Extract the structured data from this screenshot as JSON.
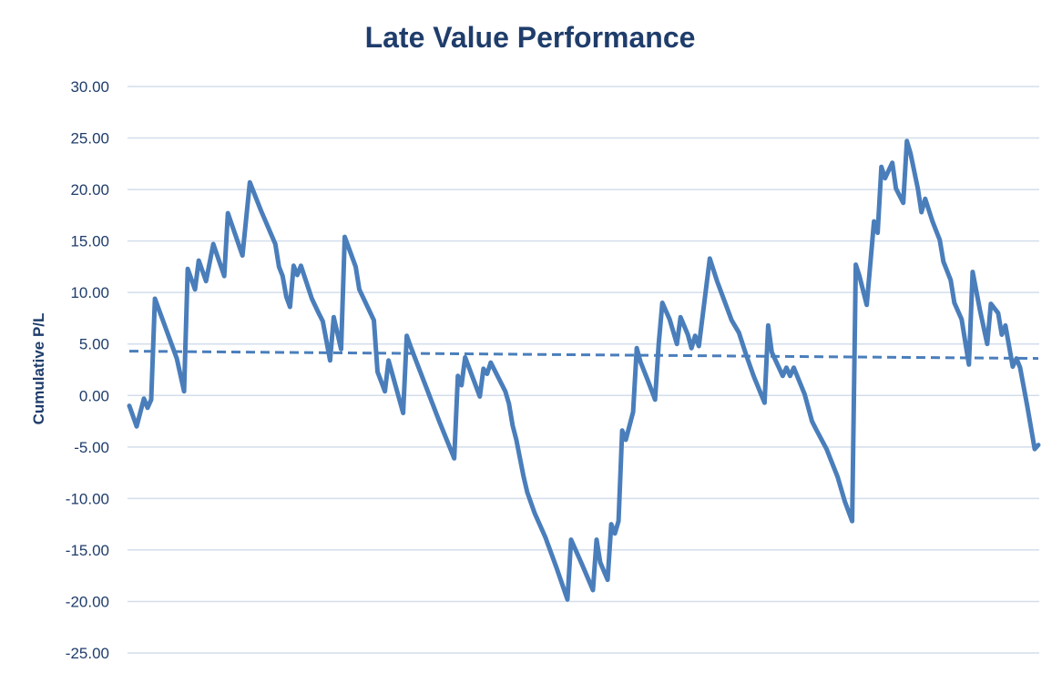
{
  "chart_data": {
    "type": "line",
    "title": "Late Value Performance",
    "xlabel": "",
    "ylabel": "Cumulative P/L",
    "ylim": [
      -25,
      30
    ],
    "yticks": [
      "30.00",
      "25.00",
      "20.00",
      "15.00",
      "10.00",
      "5.00",
      "0.00",
      "-5.00",
      "-10.00",
      "-15.00",
      "-20.00",
      "-25.00"
    ],
    "ytick_values": [
      30,
      25,
      20,
      15,
      10,
      5,
      0,
      -5,
      -10,
      -15,
      -20,
      -25
    ],
    "grid": true,
    "legend": "none",
    "colors": {
      "series": "#4a7ebb",
      "grid": "#d3deeb",
      "text": "#1f3d6b"
    },
    "series": [
      {
        "style": "solid",
        "points": [
          [
            0,
            -1.0
          ],
          [
            2,
            -3.0
          ],
          [
            4,
            -0.3
          ],
          [
            5,
            -1.2
          ],
          [
            6,
            -0.4
          ],
          [
            7,
            9.4
          ],
          [
            10,
            6.5
          ],
          [
            13,
            3.6
          ],
          [
            15,
            0.4
          ],
          [
            16,
            12.3
          ],
          [
            18,
            10.3
          ],
          [
            19,
            13.1
          ],
          [
            21,
            11.1
          ],
          [
            23,
            14.7
          ],
          [
            26,
            11.6
          ],
          [
            27,
            17.7
          ],
          [
            31,
            13.6
          ],
          [
            33,
            20.7
          ],
          [
            36,
            18.0
          ],
          [
            40,
            14.7
          ],
          [
            41,
            12.5
          ],
          [
            42,
            11.6
          ],
          [
            43,
            9.6
          ],
          [
            44,
            8.6
          ],
          [
            45,
            12.6
          ],
          [
            46,
            11.7
          ],
          [
            47,
            12.6
          ],
          [
            50,
            9.4
          ],
          [
            52,
            7.9
          ],
          [
            53,
            7.2
          ],
          [
            55,
            3.4
          ],
          [
            56,
            7.6
          ],
          [
            58,
            4.5
          ],
          [
            59,
            15.4
          ],
          [
            62,
            12.5
          ],
          [
            63,
            10.3
          ],
          [
            67,
            7.3
          ],
          [
            68,
            2.3
          ],
          [
            70,
            0.4
          ],
          [
            71,
            3.4
          ],
          [
            75,
            -1.7
          ],
          [
            76,
            5.8
          ],
          [
            77,
            4.8
          ],
          [
            85,
            -2.6
          ],
          [
            89,
            -6.1
          ],
          [
            90,
            1.9
          ],
          [
            91,
            1.0
          ],
          [
            92,
            3.7
          ],
          [
            96,
            -0.1
          ],
          [
            97,
            2.6
          ],
          [
            98,
            2.1
          ],
          [
            99,
            3.2
          ],
          [
            103,
            0.4
          ],
          [
            104,
            -0.8
          ],
          [
            105,
            -2.9
          ],
          [
            106,
            -4.3
          ],
          [
            108,
            -7.9
          ],
          [
            109,
            -9.4
          ],
          [
            111,
            -11.4
          ],
          [
            114,
            -13.8
          ],
          [
            117,
            -16.7
          ],
          [
            120,
            -19.8
          ],
          [
            121,
            -14.0
          ],
          [
            124,
            -16.4
          ],
          [
            127,
            -18.9
          ],
          [
            128,
            -14.0
          ],
          [
            129,
            -16.2
          ],
          [
            131,
            -17.9
          ],
          [
            132,
            -12.5
          ],
          [
            133,
            -13.4
          ],
          [
            134,
            -12.2
          ],
          [
            135,
            -3.4
          ],
          [
            136,
            -4.3
          ],
          [
            138,
            -1.6
          ],
          [
            139,
            4.6
          ],
          [
            140,
            3.3
          ],
          [
            142,
            1.5
          ],
          [
            144,
            -0.4
          ],
          [
            145,
            5.0
          ],
          [
            146,
            9.0
          ],
          [
            148,
            7.4
          ],
          [
            150,
            5.0
          ],
          [
            151,
            7.6
          ],
          [
            153,
            5.9
          ],
          [
            154,
            4.6
          ],
          [
            155,
            5.8
          ],
          [
            156,
            4.8
          ],
          [
            159,
            13.3
          ],
          [
            161,
            11.1
          ],
          [
            165,
            7.3
          ],
          [
            167,
            6.1
          ],
          [
            169,
            3.9
          ],
          [
            171,
            1.9
          ],
          [
            174,
            -0.7
          ],
          [
            175,
            6.8
          ],
          [
            176,
            4.2
          ],
          [
            179,
            1.9
          ],
          [
            180,
            2.7
          ],
          [
            181,
            1.9
          ],
          [
            182,
            2.7
          ],
          [
            185,
            0.1
          ],
          [
            187,
            -2.5
          ],
          [
            188,
            -3.2
          ],
          [
            191,
            -5.2
          ],
          [
            194,
            -7.9
          ],
          [
            196,
            -10.3
          ],
          [
            198,
            -12.2
          ],
          [
            199,
            12.7
          ],
          [
            200,
            11.6
          ],
          [
            202,
            8.8
          ],
          [
            204,
            16.9
          ],
          [
            205,
            15.8
          ],
          [
            206,
            22.2
          ],
          [
            207,
            21.1
          ],
          [
            209,
            22.6
          ],
          [
            210,
            20.1
          ],
          [
            212,
            18.7
          ],
          [
            213,
            24.7
          ],
          [
            214,
            23.5
          ],
          [
            216,
            20.1
          ],
          [
            217,
            17.8
          ],
          [
            218,
            19.1
          ],
          [
            220,
            16.9
          ],
          [
            222,
            15.1
          ],
          [
            223,
            13.0
          ],
          [
            225,
            11.2
          ],
          [
            226,
            9.0
          ],
          [
            228,
            7.4
          ],
          [
            230,
            3.0
          ],
          [
            231,
            12.0
          ],
          [
            233,
            8.3
          ],
          [
            235,
            5.0
          ],
          [
            236,
            8.9
          ],
          [
            238,
            8.0
          ],
          [
            239,
            5.9
          ],
          [
            240,
            6.8
          ],
          [
            242,
            2.8
          ],
          [
            243,
            3.6
          ],
          [
            244,
            2.7
          ],
          [
            246,
            -1.1
          ],
          [
            248,
            -5.2
          ],
          [
            249,
            -4.8
          ]
        ]
      },
      {
        "style": "dashed",
        "kind": "linear trendline",
        "points": [
          [
            0,
            4.3
          ],
          [
            249,
            3.6
          ]
        ]
      }
    ]
  }
}
